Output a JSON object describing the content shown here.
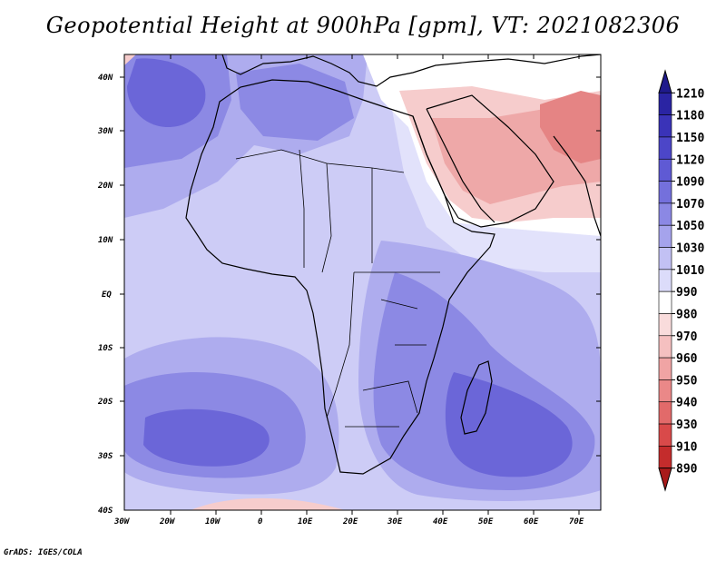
{
  "title": "Geopotential Height at 900hPa [gpm], VT: 2021082306",
  "credit": "GrADS: IGES/COLA",
  "lat_labels": [
    "40N",
    "30N",
    "20N",
    "10N",
    "EQ",
    "10S",
    "20S",
    "30S",
    "40S"
  ],
  "lon_labels": [
    "30W",
    "20W",
    "10W",
    "0",
    "10E",
    "20E",
    "30E",
    "40E",
    "50E",
    "60E",
    "70E"
  ],
  "colorbar": {
    "levels": [
      "1210",
      "1180",
      "1150",
      "1120",
      "1090",
      "1070",
      "1050",
      "1030",
      "1010",
      "990",
      "980",
      "970",
      "960",
      "950",
      "940",
      "930",
      "910",
      "890"
    ],
    "colors": [
      "#1f1a8c",
      "#2a24a3",
      "#3a33b8",
      "#4c46c8",
      "#5f5ad4",
      "#7470dc",
      "#8b88e4",
      "#a5a3ec",
      "#c2c1f4",
      "#dcdcfa",
      "#ffffff",
      "#f9dcdc",
      "#f5c0c0",
      "#f0a4a4",
      "#ea8888",
      "#e26a6a",
      "#d94a4a",
      "#c42c2c",
      "#a81a1a"
    ]
  },
  "field_colors": {
    "deep_blue": "#6b66d8",
    "mid_blue": "#8c89e4",
    "light_blue": "#aeacee",
    "pale_blue": "#cdccf6",
    "very_pale": "#e2e2fb",
    "white": "#ffffff",
    "pale_red": "#f6cccc",
    "light_red": "#eea8a8",
    "red": "#e58484",
    "coast": "#000000"
  }
}
